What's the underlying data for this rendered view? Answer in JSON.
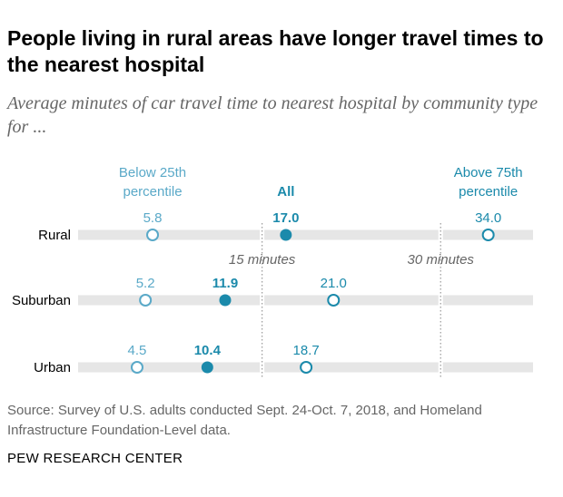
{
  "title": "People living in rural areas have longer travel times to the nearest hospital",
  "subtitle": "Average minutes of car travel time to nearest hospital by community type for ...",
  "source": "Source: Survey of U.S. adults conducted Sept. 24-Oct. 7, 2018, and Homeland Infrastructure Foundation-Level data.",
  "brand": "PEW RESEARCH CENTER",
  "colors": {
    "accent": "#1b8aab",
    "low": "#5aa9c8",
    "bar": "#e6e6e6",
    "text": "#000000",
    "muted": "#666666"
  },
  "chart_data": {
    "type": "dot",
    "xlim": [
      0,
      37
    ],
    "series": [
      {
        "name": "Below 25th percentile",
        "label_lines": [
          "Below 25th",
          "percentile"
        ],
        "style": "hollow-light"
      },
      {
        "name": "All",
        "label_lines": [
          "All"
        ],
        "style": "filled"
      },
      {
        "name": "Above 75th percentile",
        "label_lines": [
          "Above 75th",
          "percentile"
        ],
        "style": "hollow-dark"
      }
    ],
    "categories": [
      "Rural",
      "Suburban",
      "Urban"
    ],
    "values": [
      [
        5.8,
        17.0,
        34.0
      ],
      [
        5.2,
        11.9,
        21.0
      ],
      [
        4.5,
        10.4,
        18.7
      ]
    ],
    "value_labels": [
      [
        "5.8",
        "17.0",
        "34.0"
      ],
      [
        "5.2",
        "11.9",
        "21.0"
      ],
      [
        "4.5",
        "10.4",
        "18.7"
      ]
    ],
    "reference_lines": [
      {
        "value": 15,
        "label": "15 minutes"
      },
      {
        "value": 30,
        "label": "30 minutes"
      }
    ]
  }
}
